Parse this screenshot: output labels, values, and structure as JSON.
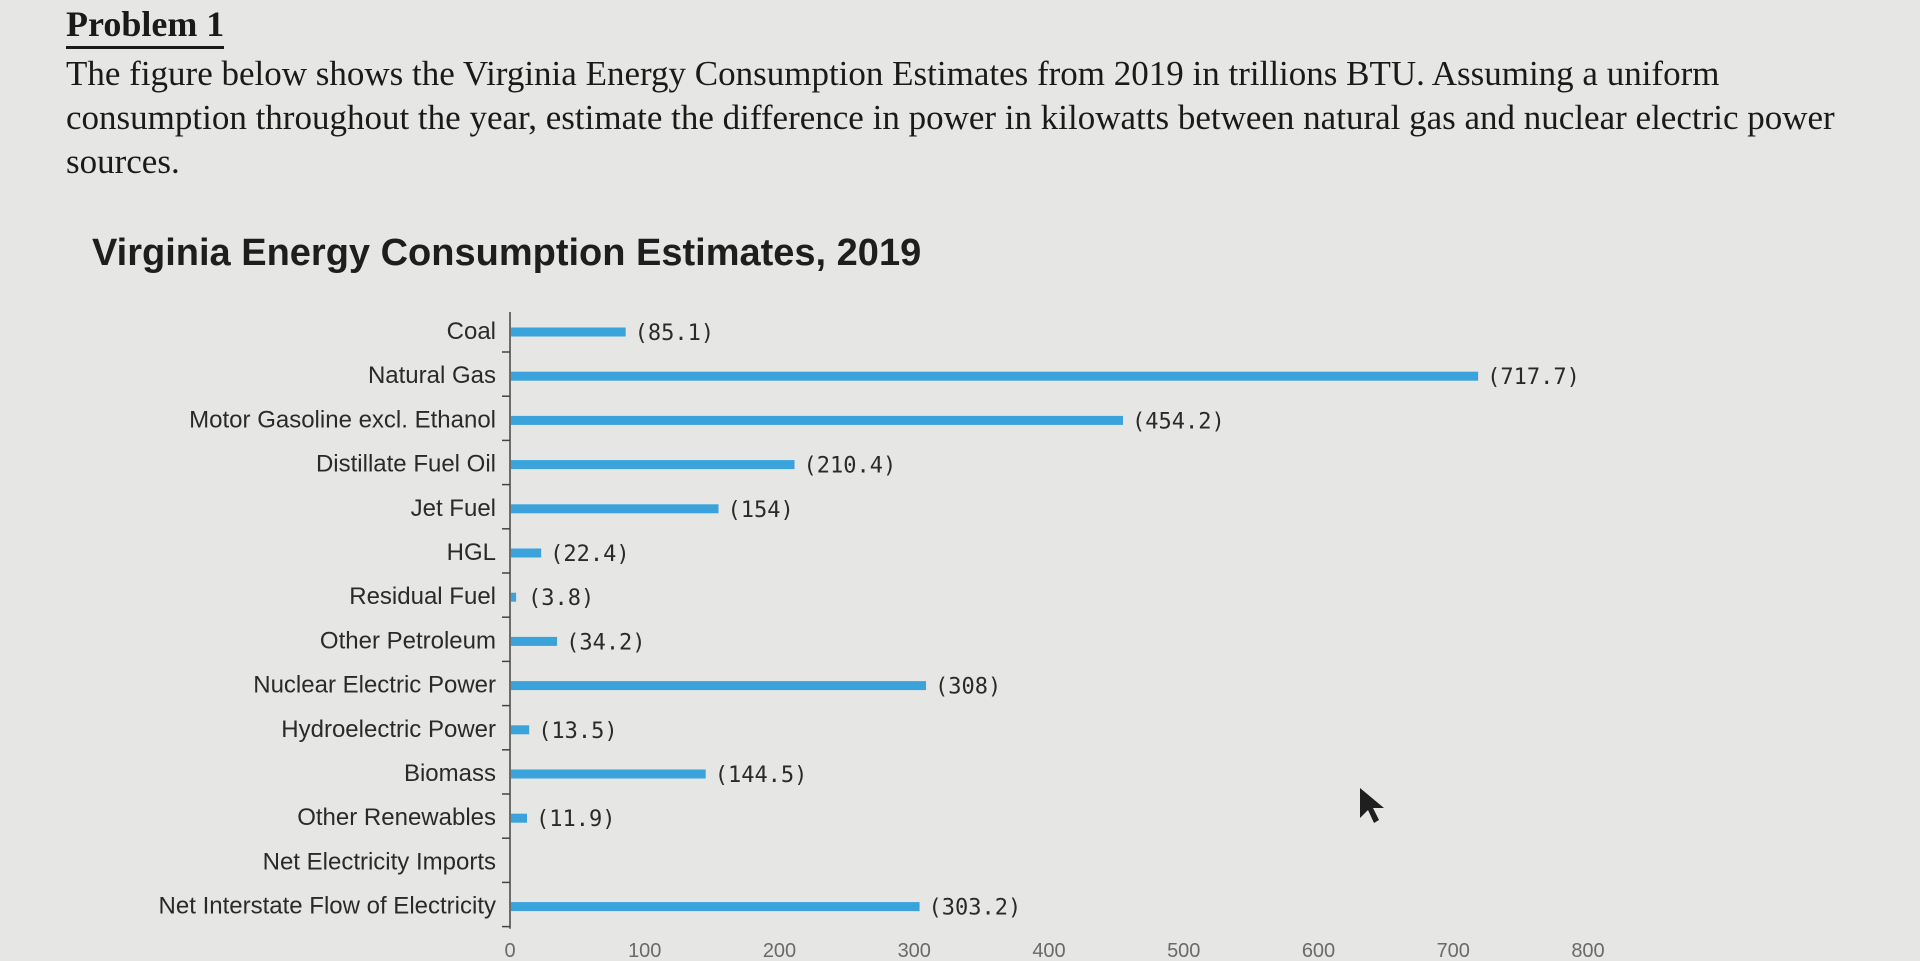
{
  "problem": {
    "heading": "Problem 1",
    "text": "The figure below shows the Virginia Energy Consumption Estimates from 2019 in trillions BTU. Assuming a uniform consumption throughout the year, estimate the difference in power in kilowatts between natural gas and nuclear electric power sources."
  },
  "chart_data": {
    "type": "bar",
    "orientation": "horizontal",
    "title": "Virginia Energy Consumption Estimates, 2019",
    "xlabel": "",
    "ylabel": "",
    "categories": [
      "Coal",
      "Natural Gas",
      "Motor Gasoline excl. Ethanol",
      "Distillate Fuel Oil",
      "Jet Fuel",
      "HGL",
      "Residual Fuel",
      "Other Petroleum",
      "Nuclear Electric Power",
      "Hydroelectric Power",
      "Biomass",
      "Other Renewables",
      "Net Electricity Imports",
      "Net Interstate Flow of Electricity"
    ],
    "values": [
      85.1,
      717.7,
      454.2,
      210.4,
      154,
      22.4,
      3.8,
      34.2,
      308,
      13.5,
      144.5,
      11.9,
      0,
      303.2
    ],
    "value_labels": [
      "(85.1)",
      "(717.7)",
      "(454.2)",
      "(210.4)",
      "(154)",
      "(22.4)",
      "(3.8)",
      "(34.2)",
      "(308)",
      "(13.5)",
      "(144.5)",
      "(11.9)",
      "",
      "(303.2)"
    ],
    "xlim": [
      0,
      800
    ],
    "xticks": [
      "0",
      "100",
      "200",
      "300",
      "400",
      "500",
      "600",
      "700",
      "800"
    ],
    "bar_color": "#3aa3dc",
    "grid": false
  }
}
